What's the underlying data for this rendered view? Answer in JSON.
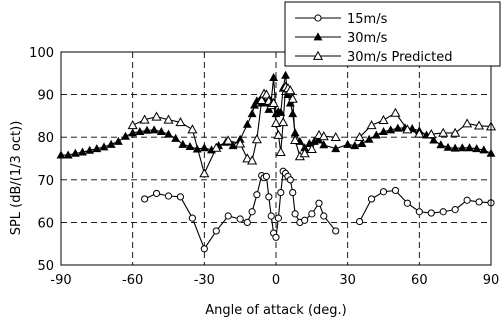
{
  "chart_data": {
    "type": "line",
    "xlabel": "Angle of attack (deg.)",
    "ylabel": "SPL (dB/(1/3 oct))",
    "xlim": [
      -90,
      90
    ],
    "ylim": [
      50,
      100
    ],
    "xticks": [
      -90,
      -60,
      -30,
      0,
      30,
      60,
      90
    ],
    "yticks": [
      50,
      60,
      70,
      80,
      90,
      100
    ],
    "grid": "dashed",
    "legend_position": "top-right",
    "series": [
      {
        "name": "15m/s",
        "marker": "circle-open",
        "segments": [
          [
            [
              -55,
              65.5
            ],
            [
              -50,
              66.8
            ],
            [
              -45,
              66.2
            ],
            [
              -40,
              66
            ],
            [
              -35,
              61
            ],
            [
              -30,
              53.8
            ],
            [
              -25,
              58
            ],
            [
              -20,
              61.5
            ],
            [
              -15,
              60.8
            ],
            [
              -12,
              60
            ],
            [
              -10,
              62.5
            ],
            [
              -8,
              66.5
            ],
            [
              -6,
              71
            ],
            [
              -5,
              70.5
            ],
            [
              -4,
              70.8
            ],
            [
              -3,
              66
            ],
            [
              -2,
              61.5
            ],
            [
              -1,
              57.5
            ],
            [
              0,
              56.5
            ],
            [
              1,
              61
            ],
            [
              2,
              67
            ],
            [
              3,
              72
            ],
            [
              4,
              71.5
            ],
            [
              5,
              70.8
            ],
            [
              6,
              70
            ],
            [
              7,
              67
            ],
            [
              8,
              62
            ],
            [
              10,
              60
            ],
            [
              12,
              60.5
            ],
            [
              15,
              62
            ],
            [
              18,
              64.5
            ],
            [
              20,
              61.5
            ],
            [
              25,
              58
            ]
          ],
          [
            [
              35,
              60.2
            ],
            [
              40,
              65.5
            ],
            [
              45,
              67.2
            ],
            [
              50,
              67.5
            ],
            [
              55,
              64.5
            ],
            [
              60,
              62.5
            ],
            [
              65,
              62.2
            ],
            [
              70,
              62.5
            ],
            [
              75,
              63
            ],
            [
              80,
              65.2
            ],
            [
              85,
              64.8
            ],
            [
              90,
              64.6
            ]
          ]
        ]
      },
      {
        "name": "30m/s",
        "marker": "triangle-filled",
        "segments": [
          [
            [
              -90,
              75.8
            ],
            [
              -87,
              75.8
            ],
            [
              -84,
              76.2
            ],
            [
              -81,
              76.5
            ],
            [
              -78,
              76.9
            ],
            [
              -75,
              77.3
            ],
            [
              -72,
              77.7
            ],
            [
              -69,
              78.3
            ],
            [
              -66,
              79
            ],
            [
              -63,
              80.2
            ],
            [
              -60,
              81
            ],
            [
              -57,
              81.3
            ],
            [
              -54,
              81.6
            ],
            [
              -51,
              81.7
            ],
            [
              -48,
              81.3
            ],
            [
              -45,
              80.7
            ],
            [
              -42,
              79.7
            ],
            [
              -39,
              78.3
            ],
            [
              -36,
              77.8
            ],
            [
              -33,
              77.2
            ],
            [
              -30,
              77.5
            ],
            [
              -27,
              77
            ],
            [
              -24,
              78
            ],
            [
              -21,
              78.8
            ],
            [
              -18,
              78
            ],
            [
              -15,
              79.5
            ],
            [
              -12,
              83
            ],
            [
              -10,
              85.5
            ],
            [
              -9,
              87.5
            ],
            [
              -8,
              88.5
            ],
            [
              -7,
              88.5
            ],
            [
              -6,
              88
            ],
            [
              -5,
              88.5
            ],
            [
              -4,
              88
            ],
            [
              -3,
              86.5
            ],
            [
              -2,
              88.5
            ],
            [
              -1,
              94
            ],
            [
              0,
              85.5
            ],
            [
              1,
              86
            ],
            [
              2,
              85.8
            ],
            [
              3,
              91.5
            ],
            [
              4,
              94.5
            ],
            [
              5,
              90
            ],
            [
              6,
              88
            ],
            [
              7,
              85.5
            ],
            [
              8,
              81
            ],
            [
              10,
              79
            ],
            [
              12,
              77.5
            ],
            [
              14,
              78.5
            ],
            [
              16,
              79
            ],
            [
              18,
              79.3
            ],
            [
              20,
              78.2
            ],
            [
              25,
              77.3
            ],
            [
              30,
              78.3
            ],
            [
              33,
              78
            ],
            [
              36,
              78.5
            ],
            [
              39,
              79.5
            ],
            [
              42,
              80.5
            ],
            [
              45,
              81.3
            ],
            [
              48,
              81.7
            ],
            [
              51,
              82.1
            ],
            [
              54,
              82.2
            ],
            [
              57,
              82
            ],
            [
              60,
              81.5
            ],
            [
              63,
              80.5
            ],
            [
              66,
              79.3
            ],
            [
              69,
              78.2
            ],
            [
              72,
              77.6
            ],
            [
              75,
              77.4
            ],
            [
              78,
              77.5
            ],
            [
              81,
              77.5
            ],
            [
              84,
              77.3
            ],
            [
              87,
              77
            ],
            [
              90,
              76.2
            ]
          ]
        ]
      },
      {
        "name": "30m/s Predicted",
        "marker": "triangle-open",
        "segments": [
          [
            [
              -60,
              82.8
            ],
            [
              -55,
              84.1
            ],
            [
              -50,
              84.8
            ],
            [
              -45,
              84.1
            ],
            [
              -40,
              83.5
            ],
            [
              -35,
              81.8
            ],
            [
              -30,
              71.5
            ],
            [
              -25,
              77.5
            ],
            [
              -20,
              79.2
            ],
            [
              -15,
              78.5
            ],
            [
              -12,
              75
            ],
            [
              -10,
              74.5
            ],
            [
              -8,
              79.5
            ],
            [
              -6,
              88.7
            ],
            [
              -5,
              90.2
            ],
            [
              -4,
              90
            ],
            [
              -3,
              88.5
            ],
            [
              -2,
              87.5
            ],
            [
              -1,
              88
            ],
            [
              0,
              83.3
            ],
            [
              1,
              80.5
            ],
            [
              2,
              76.5
            ],
            [
              3,
              83.5
            ],
            [
              4,
              91.8
            ],
            [
              5,
              91.5
            ],
            [
              6,
              91
            ],
            [
              7,
              89
            ],
            [
              8,
              79.3
            ],
            [
              10,
              75.5
            ],
            [
              12,
              76.2
            ],
            [
              15,
              77.2
            ],
            [
              18,
              80.5
            ],
            [
              20,
              80.2
            ],
            [
              25,
              80
            ]
          ],
          [
            [
              35,
              80
            ],
            [
              40,
              82.8
            ],
            [
              45,
              84
            ],
            [
              50,
              85.7
            ],
            [
              55,
              81.8
            ],
            [
              60,
              80.8
            ],
            [
              65,
              80.7
            ],
            [
              70,
              81
            ],
            [
              75,
              81
            ],
            [
              80,
              83.2
            ],
            [
              85,
              82.7
            ],
            [
              90,
              82.5
            ]
          ]
        ]
      }
    ]
  }
}
